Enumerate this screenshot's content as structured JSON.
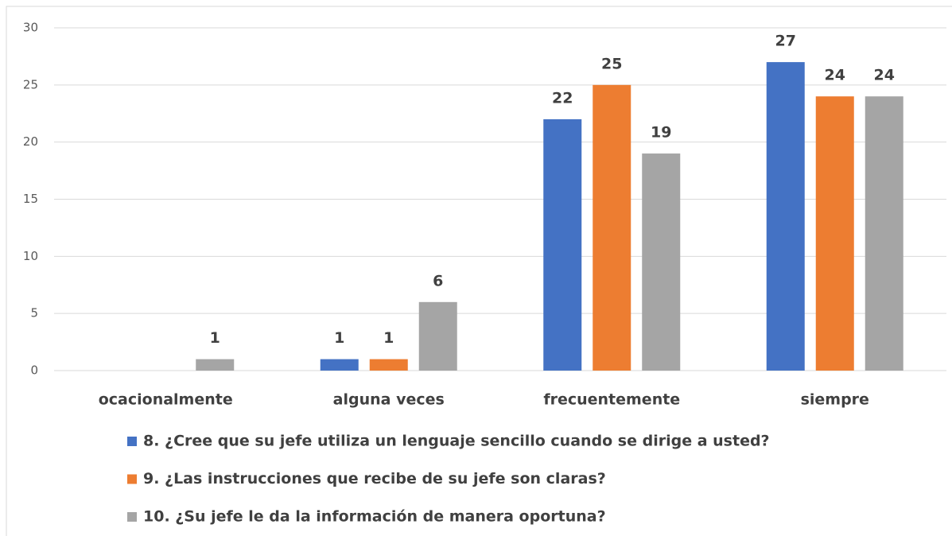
{
  "chart_data": {
    "type": "bar",
    "categories": [
      "ocacionalmente",
      "alguna veces",
      "frecuentemente",
      "siempre"
    ],
    "series": [
      {
        "name": "8. ¿Cree que su jefe utiliza un lenguaje sencillo cuando se dirige a usted?",
        "color": "#4472c4",
        "values": [
          null,
          1,
          22,
          27
        ]
      },
      {
        "name": "9. ¿Las instrucciones que recibe de su jefe son claras?",
        "color": "#ed7d31",
        "values": [
          null,
          1,
          25,
          24
        ]
      },
      {
        "name": "10. ¿Su jefe le da la información de manera oportuna?",
        "color": "#a5a5a5",
        "values": [
          1,
          6,
          19,
          24
        ]
      }
    ],
    "ylim": [
      0,
      30
    ],
    "yticks": [
      0,
      5,
      10,
      15,
      20,
      25,
      30
    ],
    "grid": true,
    "legend": "bottom",
    "data_labels": true
  }
}
